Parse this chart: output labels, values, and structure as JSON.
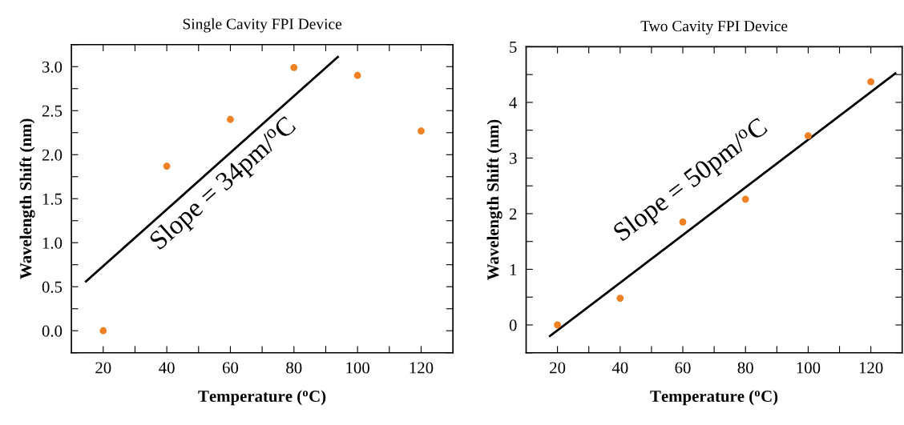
{
  "chart_data": [
    {
      "type": "scatter",
      "title": "Single Cavity FPI Device",
      "xlabel": "Temperature ($^{o}$C)",
      "ylabel": "Wavelength Shift (nm)",
      "x": [
        20,
        40,
        60,
        80,
        100,
        120
      ],
      "series": [
        {
          "color": "#f08024",
          "marker": "circle",
          "values": [
            0.0,
            1.87,
            2.4,
            2.99,
            2.9,
            2.27
          ]
        },
        {
          "type": "line",
          "color": "#000000",
          "marker": "none",
          "x": [
            14.6,
            93.8
          ],
          "values": [
            0.56,
            3.11
          ]
        }
      ],
      "annotations": [
        "Slope = 34pm/$^{o}$C"
      ],
      "xlim": [
        10,
        130
      ],
      "xticks": [
        20,
        {
          "value": 30,
          "label": null
        },
        40,
        {
          "value": 50,
          "label": null
        },
        60,
        {
          "value": 70,
          "label": null
        },
        80,
        {
          "value": 90,
          "label": null
        },
        100,
        {
          "value": 110,
          "label": null
        },
        120
      ],
      "ylim": [
        -0.25,
        3.25
      ],
      "yticks": [
        {
          "value": -0.25,
          "label": null
        },
        {
          "value": 0,
          "label": "0.0"
        },
        {
          "value": 0.25,
          "label": null
        },
        {
          "value": 0.5,
          "label": "0.5"
        },
        {
          "value": 0.75,
          "label": null
        },
        {
          "value": 1,
          "label": "1.0"
        },
        {
          "value": 1.25,
          "label": null
        },
        {
          "value": 1.5,
          "label": "1.5"
        },
        {
          "value": 1.75,
          "label": null
        },
        {
          "value": 2,
          "label": "2.0"
        },
        {
          "value": 2.25,
          "label": null
        },
        {
          "value": 2.5,
          "label": "2.5"
        },
        {
          "value": 2.75,
          "label": null
        },
        {
          "value": 3,
          "label": "3.0"
        },
        {
          "value": 3.25,
          "label": null
        }
      ]
    },
    {
      "type": "scatter",
      "title": "Two Cavity FPI Device",
      "xlabel": "Temperature ($^{o}$C)",
      "ylabel": "Wavelength Shift (nm)",
      "x": [
        20,
        40,
        60,
        80,
        100,
        120
      ],
      "series": [
        {
          "color": "#f08024",
          "marker": "circle",
          "values": [
            0.0,
            0.48,
            1.85,
            2.26,
            3.4,
            4.37
          ]
        },
        {
          "type": "line",
          "color": "#000000",
          "marker": "none",
          "x": [
            17.6,
            127.8
          ],
          "values": [
            -0.2,
            4.52
          ]
        }
      ],
      "annotations": [
        "Slope = 50pm/$^{o}$C"
      ],
      "xlim": [
        10,
        130
      ],
      "xticks": [
        20,
        {
          "value": 30,
          "label": null
        },
        40,
        {
          "value": 50,
          "label": null
        },
        60,
        {
          "value": 70,
          "label": null
        },
        80,
        {
          "value": 90,
          "label": null
        },
        100,
        {
          "value": 110,
          "label": null
        },
        120
      ],
      "ylim": [
        -0.5,
        5
      ],
      "yticks": [
        {
          "value": -0.5,
          "label": null
        },
        0,
        {
          "value": 0.5,
          "label": null
        },
        1,
        {
          "value": 1.5,
          "label": null
        },
        2,
        {
          "value": 2.5,
          "label": null
        },
        3,
        {
          "value": 3.5,
          "label": null
        },
        4,
        {
          "value": 4.5,
          "label": null
        },
        5
      ]
    }
  ]
}
